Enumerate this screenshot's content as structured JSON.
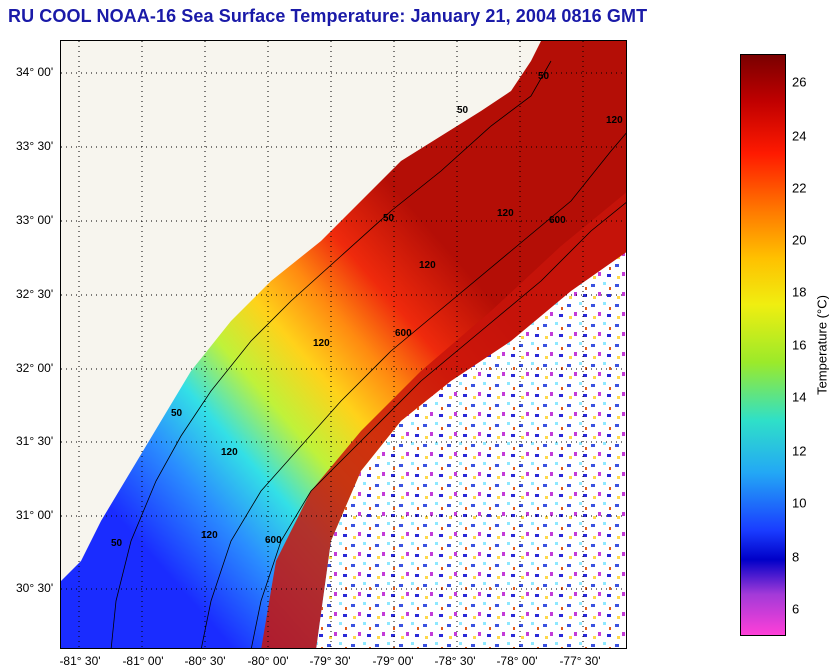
{
  "title": "RU COOL  NOAA-16  Sea Surface Temperature:  January 21, 2004 0816 GMT",
  "map": {
    "lat_labels": [
      "34° 00'",
      "33° 30'",
      "33° 00'",
      "32° 30'",
      "32° 00'",
      "31° 30'",
      "31° 00'",
      "30° 30'"
    ],
    "lon_labels": [
      "-81° 30'",
      "-81° 00'",
      "-80° 30'",
      "-80° 00'",
      "-79° 30'",
      "-79° 00'",
      "-78° 30'",
      "-78° 00'",
      "-77° 30'"
    ],
    "contour_labels": [
      "50",
      "50",
      "50",
      "50",
      "50",
      "120",
      "120",
      "120",
      "120",
      "120",
      "120",
      "600",
      "600",
      "600"
    ],
    "colors": {
      "land": "#f7f5ee",
      "cold": "#1b3cff",
      "warm": "#d41a0a",
      "cloud": "#ffffff"
    }
  },
  "colorbar": {
    "label": "Temperature (°C)",
    "ticks": [
      "26",
      "24",
      "22",
      "20",
      "18",
      "16",
      "14",
      "12",
      "10",
      "8",
      "6"
    ],
    "range": [
      5,
      27
    ]
  }
}
